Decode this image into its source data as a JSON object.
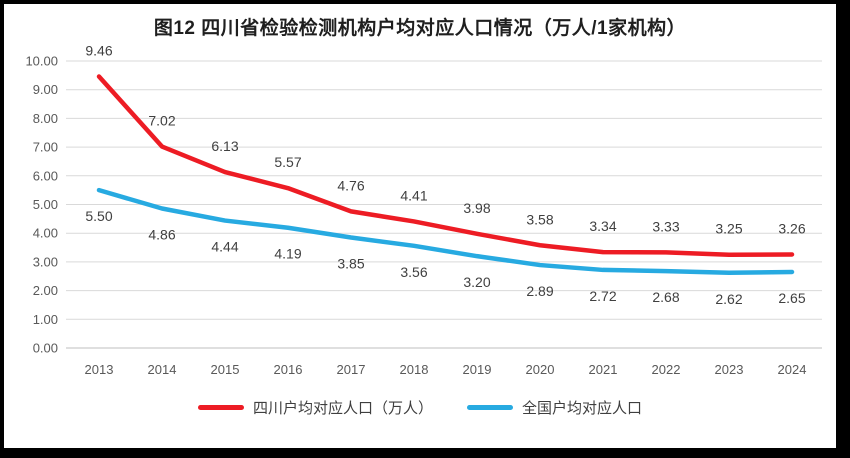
{
  "chart_data": {
    "type": "line",
    "title": "图12 四川省检验检测机构户均对应人口情况（万人/1家机构）",
    "categories": [
      "2013",
      "2014",
      "2015",
      "2016",
      "2017",
      "2018",
      "2019",
      "2020",
      "2021",
      "2022",
      "2023",
      "2024"
    ],
    "series": [
      {
        "name": "四川户均对应人口（万人）",
        "values": [
          9.46,
          7.02,
          6.13,
          5.57,
          4.76,
          4.41,
          3.98,
          3.58,
          3.34,
          3.33,
          3.25,
          3.26
        ],
        "color": "#ed1c24",
        "label_position": "above"
      },
      {
        "name": "全国户均对应人口",
        "values": [
          5.5,
          4.86,
          4.44,
          4.19,
          3.85,
          3.56,
          3.2,
          2.89,
          2.72,
          2.68,
          2.62,
          2.65
        ],
        "color": "#27aae1",
        "label_position": "below"
      }
    ],
    "xlabel": "",
    "ylabel": "",
    "ylim": [
      0,
      10
    ],
    "ytick_step": 1,
    "ytick_decimals": 2,
    "grid": true,
    "legend_position": "bottom",
    "style": {
      "grid_color": "#d9d9d9",
      "axis_line_color": "#bfbfbf",
      "axis_text_color": "#595959",
      "data_label_color": "#404040"
    }
  }
}
